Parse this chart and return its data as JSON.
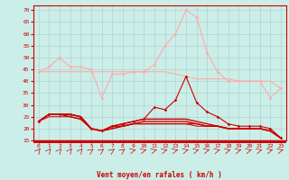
{
  "x": [
    0,
    1,
    2,
    3,
    4,
    5,
    6,
    7,
    8,
    9,
    10,
    11,
    12,
    13,
    14,
    15,
    16,
    17,
    18,
    19,
    20,
    21,
    22,
    23
  ],
  "background_color": "#cceee8",
  "grid_color": "#aacccc",
  "xlabel": "Vent moyen/en rafales ( km/h )",
  "ylim": [
    15,
    72
  ],
  "yticks": [
    15,
    20,
    25,
    30,
    35,
    40,
    45,
    50,
    55,
    60,
    65,
    70
  ],
  "xlim": [
    -0.5,
    23.5
  ],
  "series": [
    {
      "values": [
        44,
        44,
        44,
        44,
        44,
        44,
        44,
        44,
        44,
        44,
        44,
        44,
        44,
        43,
        42,
        41,
        41,
        41,
        41,
        40,
        40,
        40,
        40,
        37
      ],
      "color": "#ffaaaa",
      "lw": 0.8,
      "marker": null
    },
    {
      "values": [
        44,
        46,
        50,
        46,
        46,
        45,
        33,
        43,
        43,
        44,
        44,
        47,
        55,
        60,
        70,
        67,
        52,
        44,
        40,
        40,
        40,
        40,
        33,
        37
      ],
      "color": "#ffaaaa",
      "lw": 0.8,
      "marker": "D",
      "ms": 1.8
    },
    {
      "values": [
        23,
        26,
        26,
        26,
        25,
        20,
        19,
        21,
        22,
        23,
        24,
        29,
        28,
        32,
        42,
        31,
        27,
        25,
        22,
        21,
        21,
        21,
        20,
        16
      ],
      "color": "#cc0000",
      "lw": 0.8,
      "marker": "D",
      "ms": 1.8
    },
    {
      "values": [
        23,
        26,
        26,
        26,
        25,
        20,
        19,
        21,
        22,
        23,
        24,
        24,
        24,
        24,
        24,
        23,
        22,
        21,
        20,
        20,
        20,
        20,
        19,
        16
      ],
      "color": "#cc0000",
      "lw": 1.0,
      "marker": null
    },
    {
      "values": [
        23,
        26,
        26,
        26,
        25,
        20,
        19,
        21,
        21,
        22,
        23,
        23,
        23,
        23,
        23,
        22,
        21,
        21,
        20,
        20,
        20,
        20,
        19,
        16
      ],
      "color": "#cc0000",
      "lw": 1.0,
      "marker": null
    },
    {
      "values": [
        23,
        26,
        26,
        25,
        24,
        20,
        19,
        20,
        21,
        22,
        22,
        22,
        22,
        22,
        22,
        22,
        21,
        21,
        20,
        20,
        20,
        20,
        19,
        16
      ],
      "color": "#cc0000",
      "lw": 1.0,
      "marker": null
    },
    {
      "values": [
        23,
        25,
        25,
        25,
        24,
        20,
        19,
        20,
        21,
        22,
        22,
        22,
        22,
        22,
        22,
        21,
        21,
        21,
        20,
        20,
        20,
        20,
        19,
        16
      ],
      "color": "#cc0000",
      "lw": 0.7,
      "marker": null
    }
  ],
  "arrow_color": "#cc0000",
  "label_color": "#cc0000",
  "spine_color": "#cc0000"
}
